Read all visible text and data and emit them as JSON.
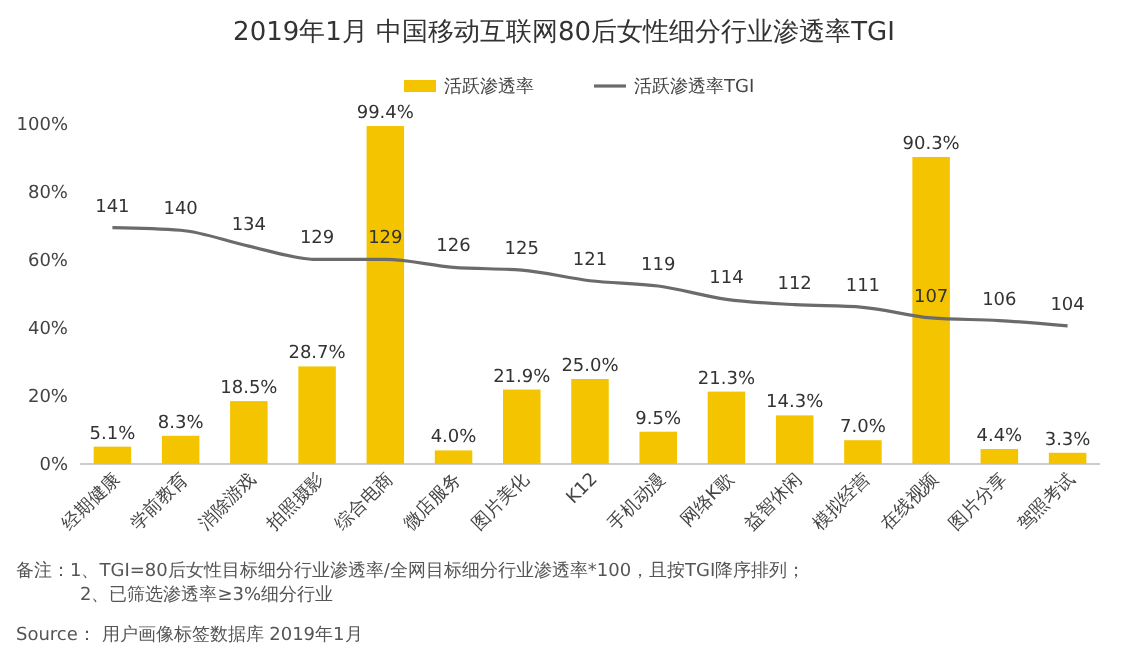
{
  "chart_data": {
    "type": "bar",
    "title": "2019年1月 中国移动互联网80后女性细分行业渗透率TGI",
    "categories": [
      "经期健康",
      "学前教育",
      "消除游戏",
      "拍照摄影",
      "综合电商",
      "微店服务",
      "图片美化",
      "K12",
      "手机动漫",
      "网络K歌",
      "益智休闲",
      "模拟经营",
      "在线视频",
      "图片分享",
      "驾照考试"
    ],
    "series": [
      {
        "name": "活跃渗透率",
        "color": "#f5c400",
        "values": [
          5.1,
          8.3,
          18.5,
          28.7,
          99.4,
          4.0,
          21.9,
          25.0,
          9.5,
          21.3,
          14.3,
          7.0,
          90.3,
          4.4,
          3.3
        ],
        "value_labels": [
          "5.1%",
          "8.3%",
          "18.5%",
          "28.7%",
          "99.4%",
          "4.0%",
          "21.9%",
          "25.0%",
          "9.5%",
          "21.3%",
          "14.3%",
          "7.0%",
          "90.3%",
          "4.4%",
          "3.3%"
        ]
      },
      {
        "name": "活跃渗透率TGI",
        "type": "line",
        "axis": "y2",
        "color": "#6b6b6b",
        "values": [
          141,
          140,
          134,
          129,
          129,
          126,
          125,
          121,
          119,
          114,
          112,
          111,
          107,
          106,
          104
        ],
        "value_labels": [
          "141",
          "140",
          "134",
          "129",
          "129",
          "126",
          "125",
          "121",
          "119",
          "114",
          "112",
          "111",
          "107",
          "106",
          "104"
        ]
      }
    ],
    "ylim": [
      0,
      100
    ],
    "yticks": [
      {
        "value": 0,
        "label": "0%"
      },
      {
        "value": 20,
        "label": "20%"
      },
      {
        "value": 40,
        "label": "40%"
      },
      {
        "value": 60,
        "label": "60%"
      },
      {
        "value": 80,
        "label": "80%"
      },
      {
        "value": 100,
        "label": "100%"
      }
    ],
    "y2lim": [
      52,
      180
    ],
    "grid": false,
    "legend": "top",
    "marker": "none",
    "line_style": "solid",
    "annotations": [
      "备注：1、TGI=80后女性目标细分行业渗透率/全网目标细分行业渗透率*100，且按TGI降序排列；",
      "2、已筛选渗透率≥3%细分行业",
      "Source： 用户画像标签数据库 2019年1月"
    ]
  }
}
